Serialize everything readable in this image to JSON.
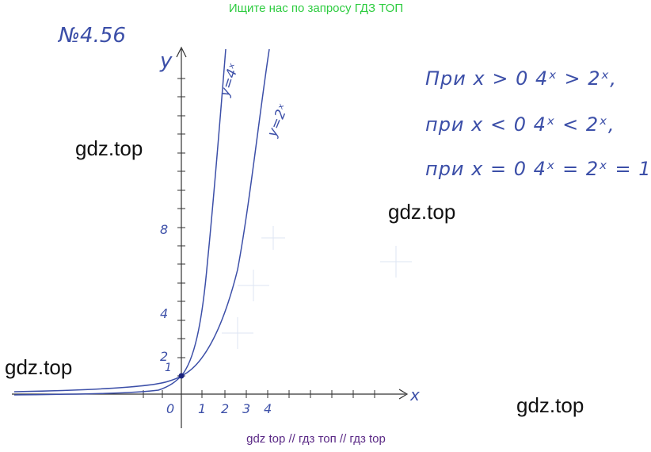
{
  "banner": {
    "top": "Ищите нас по запросу ГДЗ ТОП",
    "bottom": "gdz top  //  гдз топ  //  гдз top"
  },
  "watermarks": [
    "gdz.top",
    "gdz.top",
    "gdz.top",
    "gdz.top"
  ],
  "problem_number": "№4.56",
  "graph": {
    "y_axis_label": "y",
    "x_axis_label": "x",
    "curve_4x_label": "y=4ˣ",
    "curve_2x_label": "y=2ˣ",
    "y_ticks": [
      "8",
      "4",
      "2",
      "1"
    ],
    "x_ticks": [
      "0",
      "1",
      "2",
      "3",
      "4"
    ]
  },
  "statements": [
    "При  x > 0   4ˣ > 2ˣ,",
    "при  x < 0   4ˣ < 2ˣ,",
    "при  x = 0   4ˣ = 2ˣ = 1"
  ],
  "colors": {
    "ink": "#3c4fa8",
    "banner_top": "#2ecc40",
    "banner_bottom": "#5b2a86"
  }
}
